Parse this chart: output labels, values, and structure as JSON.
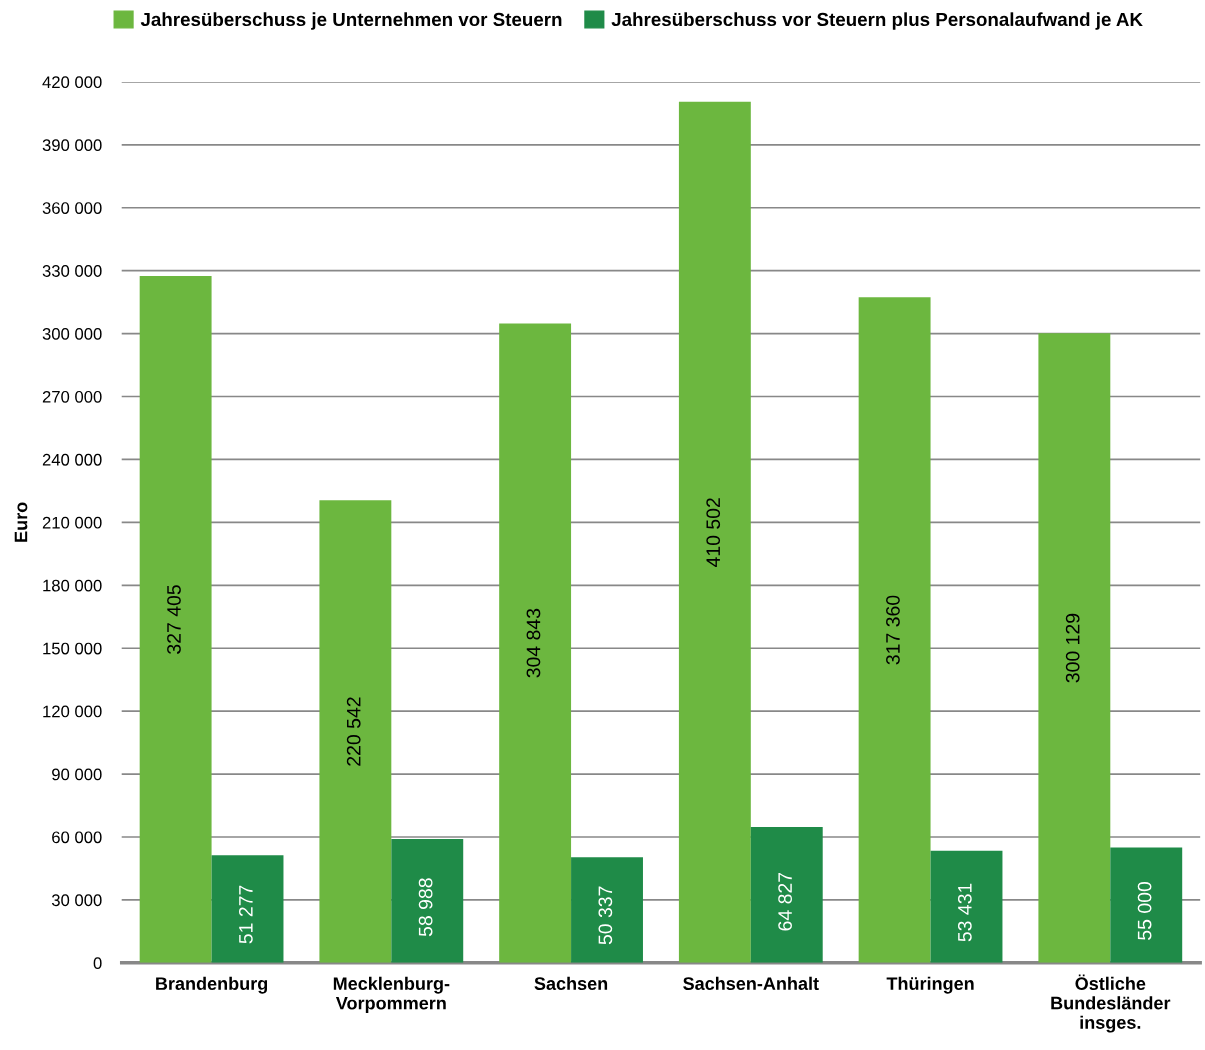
{
  "chart_data": {
    "type": "bar",
    "ylabel": "Euro",
    "categories": [
      "Brandenburg",
      "Mecklenburg-\nVorpommern",
      "Sachsen",
      "Sachsen-Anhalt",
      "Thüringen",
      "Östliche\nBundesländer\ninsges."
    ],
    "series": [
      {
        "name": "Jahresüberschuss je Unternehmen vor Steuern",
        "color": "#6cb73f",
        "values": [
          327405,
          220542,
          304843,
          410502,
          317360,
          300129
        ],
        "value_labels": [
          "327 405",
          "220 542",
          "304 843",
          "410 502",
          "317 360",
          "300 129"
        ]
      },
      {
        "name": "Jahresüberschuss vor Steuern plus Personalaufwand je AK",
        "color": "#1f8b48",
        "values": [
          51277,
          58988,
          50337,
          64827,
          53431,
          55000
        ],
        "value_labels": [
          "51 277",
          "58 988",
          "50 337",
          "64 827",
          "53 431",
          "55 000"
        ]
      }
    ],
    "ylim": [
      0,
      420000
    ],
    "yticks": [
      {
        "value": 0,
        "label": "0"
      },
      {
        "value": 30000,
        "label": "30 000"
      },
      {
        "value": 60000,
        "label": "60 000"
      },
      {
        "value": 90000,
        "label": "90 000"
      },
      {
        "value": 120000,
        "label": "120 000"
      },
      {
        "value": 150000,
        "label": "150 000"
      },
      {
        "value": 180000,
        "label": "180 000"
      },
      {
        "value": 210000,
        "label": "210 000"
      },
      {
        "value": 240000,
        "label": "240 000"
      },
      {
        "value": 270000,
        "label": "270 000"
      },
      {
        "value": 300000,
        "label": "300 000"
      },
      {
        "value": 330000,
        "label": "330 000"
      },
      {
        "value": 360000,
        "label": "360 000"
      },
      {
        "value": 390000,
        "label": "390 000"
      },
      {
        "value": 420000,
        "label": "420 000"
      }
    ],
    "grid": "y",
    "legend": "top"
  }
}
